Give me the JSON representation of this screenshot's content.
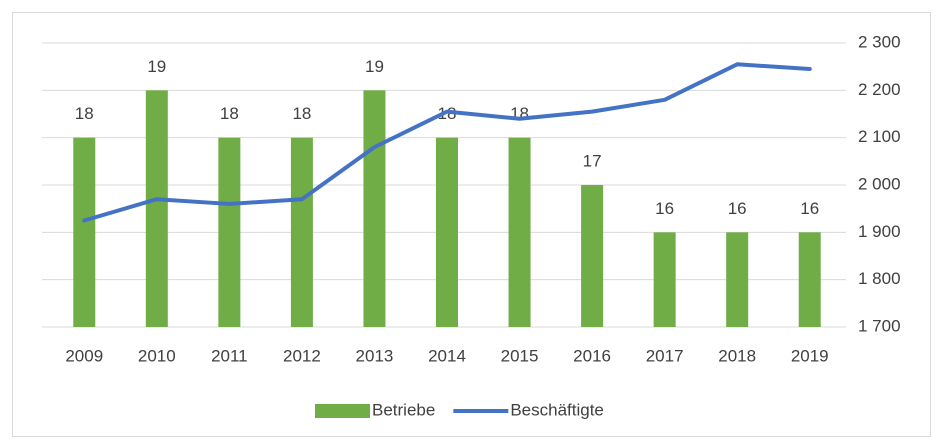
{
  "chart_data": {
    "type": "bar-line",
    "categories": [
      "2009",
      "2010",
      "2011",
      "2012",
      "2013",
      "2014",
      "2015",
      "2016",
      "2017",
      "2018",
      "2019"
    ],
    "series": [
      {
        "name": "Betriebe",
        "type": "bar",
        "color": "#70ad47",
        "values": [
          18,
          19,
          18,
          18,
          19,
          18,
          18,
          17,
          16,
          16,
          16
        ]
      },
      {
        "name": "Beschäftigte",
        "type": "line",
        "axis": "y2",
        "color": "#4472c4",
        "values": [
          1925,
          1970,
          1960,
          1970,
          2080,
          2155,
          2140,
          2155,
          2180,
          2255,
          2245
        ]
      }
    ],
    "ylim": [
      14,
      20
    ],
    "y2lim": [
      1700,
      2300
    ],
    "y2ticks": [
      {
        "value": 1700,
        "label": "1 700"
      },
      {
        "value": 1800,
        "label": "1 800"
      },
      {
        "value": 1900,
        "label": "1 900"
      },
      {
        "value": 2000,
        "label": "2 000"
      },
      {
        "value": 2100,
        "label": "2 100"
      },
      {
        "value": 2200,
        "label": "2 200"
      },
      {
        "value": 2300,
        "label": "2 300"
      }
    ],
    "grid": true,
    "legend": "bottom"
  }
}
